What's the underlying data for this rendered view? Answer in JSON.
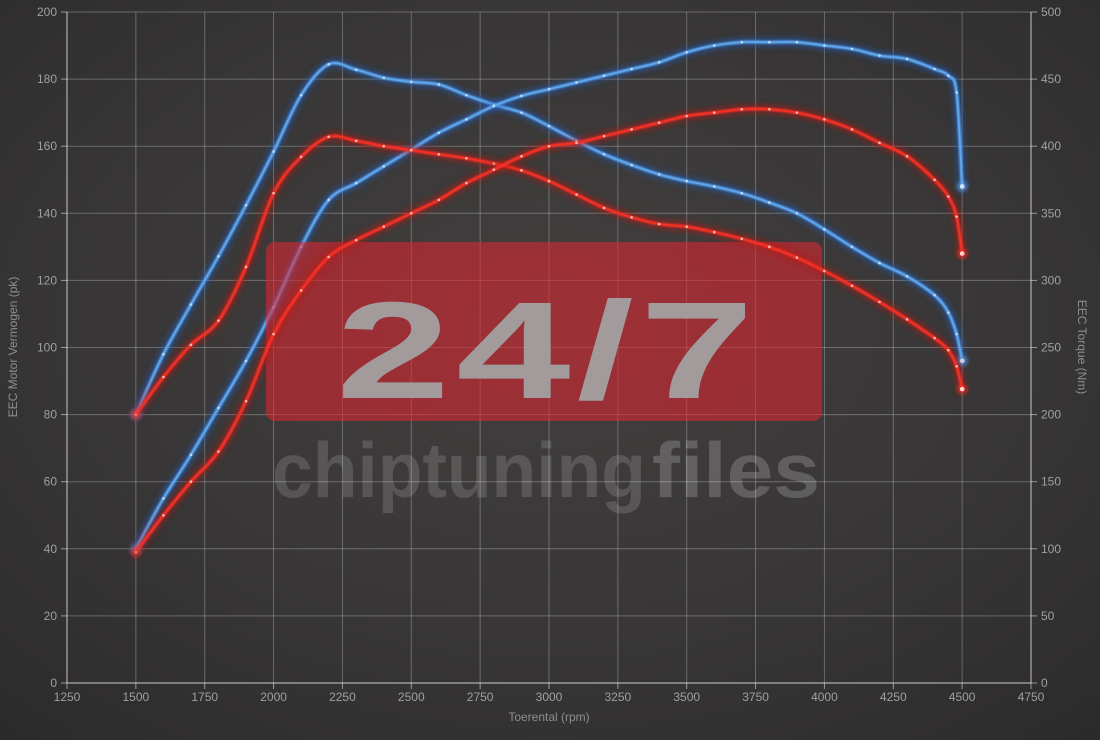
{
  "chart_data": {
    "type": "line",
    "title": "",
    "xlabel": "Toerental (rpm)",
    "ylabel_left": "EEC Motor Vermogen (pk)",
    "ylabel_right": "EEC Torque (Nm)",
    "x_ticks": [
      1250,
      1500,
      1750,
      2000,
      2250,
      2500,
      2750,
      3000,
      3250,
      3500,
      3750,
      4000,
      4250,
      4500,
      4750
    ],
    "y_left_ticks": [
      0,
      20,
      40,
      60,
      80,
      100,
      120,
      140,
      160,
      180,
      200
    ],
    "y_right_ticks": [
      0,
      50,
      100,
      150,
      200,
      250,
      300,
      350,
      400,
      450,
      500
    ],
    "xlim": [
      1250,
      4750
    ],
    "ylim_left": [
      0,
      200
    ],
    "ylim_right": [
      0,
      500
    ],
    "grid": true,
    "legend": "none",
    "x": [
      1500,
      1600,
      1700,
      1800,
      1900,
      2000,
      2100,
      2200,
      2300,
      2400,
      2500,
      2600,
      2700,
      2800,
      2900,
      3000,
      3100,
      3200,
      3300,
      3400,
      3500,
      3600,
      3700,
      3800,
      3900,
      4000,
      4100,
      4200,
      4300,
      4400,
      4450,
      4480,
      4500
    ],
    "series": [
      {
        "name": "torque-tuned-blue",
        "axis": "right",
        "unit": "Nm",
        "values": [
          200,
          245,
          282,
          318,
          356,
          396,
          438,
          461,
          457,
          451,
          448,
          446,
          438,
          431,
          425,
          415,
          404,
          394,
          386,
          379,
          374,
          370,
          365,
          358,
          350,
          338,
          325,
          313,
          303,
          289,
          276,
          260,
          240
        ],
        "colors": {
          "halo": "#1d5fc4",
          "core": "#5ea6ee",
          "marker": "#cfe4fb"
        }
      },
      {
        "name": "power-tuned-blue",
        "axis": "left",
        "unit": "pk",
        "values": [
          40,
          55,
          68,
          82,
          96,
          112,
          130,
          144,
          149,
          154,
          159,
          164,
          168,
          172,
          175,
          177,
          179,
          181,
          183,
          185,
          188,
          190,
          191,
          191,
          191,
          190,
          189,
          187,
          186,
          183,
          181,
          176,
          148
        ],
        "colors": {
          "halo": "#1d5fc4",
          "core": "#5ea6ee",
          "marker": "#cfe4fb"
        }
      },
      {
        "name": "torque-original-red",
        "axis": "right",
        "unit": "Nm",
        "values": [
          200,
          228,
          252,
          270,
          310,
          365,
          392,
          407,
          404,
          400,
          397,
          394,
          391,
          387,
          382,
          374,
          364,
          354,
          347,
          342,
          340,
          336,
          331,
          325,
          317,
          307,
          296,
          284,
          271,
          257,
          248,
          236,
          219
        ],
        "colors": {
          "halo": "#c01410",
          "core": "#f53026",
          "marker": "#ffd2ca"
        }
      },
      {
        "name": "power-original-red",
        "axis": "left",
        "unit": "pk",
        "values": [
          39,
          50,
          60,
          69,
          84,
          104,
          117,
          127,
          132,
          136,
          140,
          144,
          149,
          153,
          157,
          160,
          161,
          163,
          165,
          167,
          169,
          170,
          171,
          171,
          170,
          168,
          165,
          161,
          157,
          150,
          145,
          139,
          128
        ],
        "colors": {
          "halo": "#c01410",
          "core": "#f53026",
          "marker": "#ffd2ca"
        }
      }
    ],
    "watermark": {
      "big_text": "24/7",
      "brand_left": "chiptuning",
      "brand_right": "files",
      "box_color": "#dc2630"
    },
    "palette": {
      "background": "#383636",
      "grid": "#8c8c8c",
      "tick_label": "#a0a0a0",
      "axis_title": "#8f8f8f",
      "blue_curve": "#5ea6ee",
      "red_curve": "#f53026"
    }
  }
}
